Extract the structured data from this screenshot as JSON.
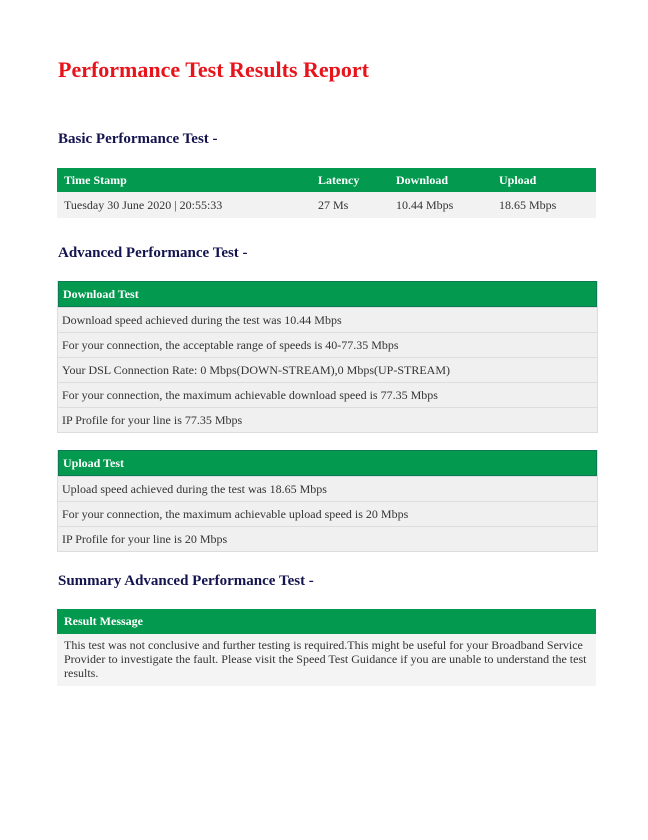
{
  "title": "Performance Test Results Report",
  "basic": {
    "heading": "Basic Performance Test -",
    "columns": [
      "Time Stamp",
      "Latency",
      "Download",
      "Upload"
    ],
    "row": [
      "Tuesday 30 June 2020 | 20:55:33",
      "27 Ms",
      "10.44 Mbps",
      "18.65 Mbps"
    ]
  },
  "advanced": {
    "heading": "Advanced Performance Test -",
    "download": {
      "header": "Download Test",
      "rows": [
        "Download speed achieved during the test was 10.44 Mbps",
        "For your connection, the acceptable range of speeds is  40-77.35 Mbps",
        "Your DSL Connection Rate: 0 Mbps(DOWN-STREAM),0 Mbps(UP-STREAM)",
        "For your connection, the maximum achievable download speed is 77.35 Mbps",
        "IP Profile for your line is 77.35 Mbps"
      ]
    },
    "upload": {
      "header": "Upload Test",
      "rows": [
        "Upload speed achieved during the test was 18.65 Mbps",
        "For your connection, the maximum achievable upload speed is 20 Mbps",
        "IP Profile for your line is 20 Mbps"
      ]
    }
  },
  "summary": {
    "heading": "Summary Advanced Performance Test -",
    "header": "Result Message",
    "message": "This test was not conclusive and further testing is required.This might be useful for your Broadband Service Provider to investigate the fault. Please visit the Speed Test Guidance if you are unable to understand the test results."
  },
  "colors": {
    "title": "#e8141c",
    "heading": "#141450",
    "header_bg": "#039a4f"
  }
}
